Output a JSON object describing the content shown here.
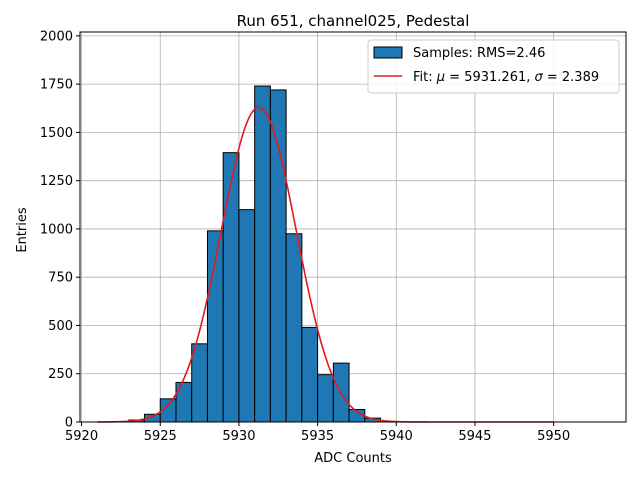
{
  "chart_data": {
    "type": "bar",
    "title": "Run 651, channel025, Pedestal",
    "xlabel": "ADC Counts",
    "ylabel": "Entries",
    "xlim": [
      5919.9,
      5954.6
    ],
    "ylim": [
      0,
      2020
    ],
    "xticks": [
      5920,
      5925,
      5930,
      5935,
      5940,
      5945,
      5950
    ],
    "yticks": [
      0,
      250,
      500,
      750,
      1000,
      1250,
      1500,
      1750,
      2000
    ],
    "grid": true,
    "legend_position": "top-right",
    "histogram": {
      "name": "Samples: RMS=2.46",
      "color": "#1f77b4",
      "bin_width": 1,
      "bins": [
        {
          "x": 5923,
          "value": 10
        },
        {
          "x": 5924,
          "value": 40
        },
        {
          "x": 5925,
          "value": 120
        },
        {
          "x": 5926,
          "value": 205
        },
        {
          "x": 5927,
          "value": 405
        },
        {
          "x": 5928,
          "value": 990
        },
        {
          "x": 5929,
          "value": 1395
        },
        {
          "x": 5930,
          "value": 1100
        },
        {
          "x": 5931,
          "value": 1740
        },
        {
          "x": 5932,
          "value": 1720
        },
        {
          "x": 5933,
          "value": 975
        },
        {
          "x": 5934,
          "value": 490
        },
        {
          "x": 5935,
          "value": 245
        },
        {
          "x": 5936,
          "value": 305
        },
        {
          "x": 5937,
          "value": 65
        },
        {
          "x": 5938,
          "value": 20
        }
      ]
    },
    "fit": {
      "name_prefix": "Fit: ",
      "mu_symbol": "μ",
      "sigma_symbol": "σ",
      "name_mid": " = 5931.261, ",
      "name_end": " = 2.389",
      "color": "#e31a1c",
      "mu": 5931.261,
      "sigma": 2.389,
      "amplitude": 1630,
      "x_range": [
        5921,
        5950
      ]
    }
  }
}
